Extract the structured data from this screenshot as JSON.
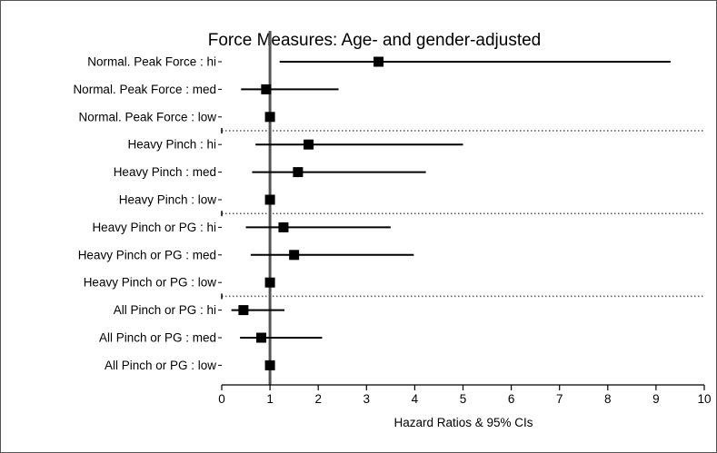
{
  "chart_data": {
    "type": "forest",
    "title": "Force Measures: Age- and gender-adjusted",
    "xlabel": "Hazard Ratios & 95% CIs",
    "xlim": [
      0,
      10
    ],
    "xticks": [
      "0",
      "1",
      "2",
      "3",
      "4",
      "5",
      "6",
      "7",
      "8",
      "9",
      "10"
    ],
    "reference_line": 1,
    "rows": [
      {
        "label": "Normal. Peak Force : hi",
        "hr": 3.25,
        "lo": 1.2,
        "hi": 9.3
      },
      {
        "label": "Normal. Peak Force : med",
        "hr": 0.92,
        "lo": 0.4,
        "hi": 2.42
      },
      {
        "label": "Normal. Peak Force : low",
        "hr": 1.0,
        "lo": 1.0,
        "hi": 1.0
      },
      {
        "label": "Heavy Pinch : hi",
        "hr": 1.8,
        "lo": 0.7,
        "hi": 5.0
      },
      {
        "label": "Heavy Pinch : med",
        "hr": 1.58,
        "lo": 0.63,
        "hi": 4.23
      },
      {
        "label": "Heavy Pinch : low",
        "hr": 1.0,
        "lo": 1.0,
        "hi": 1.0
      },
      {
        "label": "Heavy Pinch or PG : hi",
        "hr": 1.28,
        "lo": 0.5,
        "hi": 3.5
      },
      {
        "label": "Heavy Pinch or PG : med",
        "hr": 1.5,
        "lo": 0.6,
        "hi": 3.98
      },
      {
        "label": "Heavy Pinch or PG : low",
        "hr": 1.0,
        "lo": 1.0,
        "hi": 1.0
      },
      {
        "label": "All Pinch or PG : hi",
        "hr": 0.45,
        "lo": 0.2,
        "hi": 1.3
      },
      {
        "label": "All Pinch or PG : med",
        "hr": 0.82,
        "lo": 0.38,
        "hi": 2.08
      },
      {
        "label": "All Pinch or PG : low",
        "hr": 1.0,
        "lo": 1.0,
        "hi": 1.0
      }
    ],
    "group_separators_after_row": [
      2,
      5,
      8
    ],
    "grid": false
  }
}
